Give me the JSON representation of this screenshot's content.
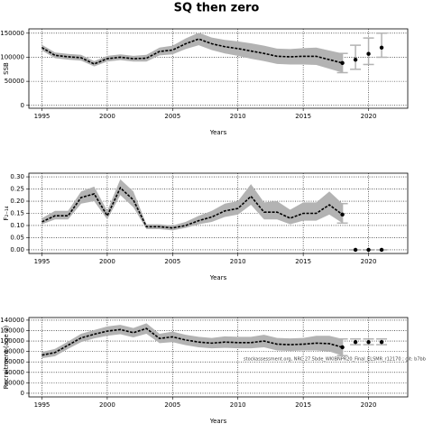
{
  "title": "SQ then zero",
  "chart_data": [
    {
      "type": "line",
      "xlabel": "Years",
      "ylabel": "SSB",
      "xlim": [
        1994,
        2023
      ],
      "xticks": [
        1995,
        2000,
        2005,
        2010,
        2015,
        2020
      ],
      "ylim": [
        -6000,
        159000
      ],
      "yticks": [
        0,
        50000,
        100000,
        150000
      ],
      "grid": true,
      "x": [
        1995,
        1996,
        1997,
        1998,
        1999,
        2000,
        2001,
        2002,
        2003,
        2004,
        2005,
        2006,
        2007,
        2008,
        2009,
        2010,
        2011,
        2012,
        2013,
        2014,
        2015,
        2016,
        2017,
        2018
      ],
      "values": [
        120000,
        104000,
        101000,
        99000,
        86000,
        97000,
        100000,
        97000,
        98000,
        112000,
        115000,
        128000,
        138000,
        128000,
        122000,
        118000,
        113000,
        108000,
        102000,
        101000,
        102000,
        102000,
        95000,
        88000
      ],
      "lower": [
        114000,
        98000,
        95000,
        93000,
        81000,
        91000,
        94000,
        91000,
        91000,
        104000,
        106000,
        117000,
        125000,
        115000,
        108000,
        103000,
        97000,
        92000,
        86000,
        85000,
        85000,
        84000,
        76000,
        68000
      ],
      "upper": [
        126000,
        110000,
        107000,
        105000,
        92000,
        103000,
        106000,
        103000,
        105000,
        120000,
        124000,
        139000,
        151000,
        141000,
        136000,
        133000,
        129000,
        124000,
        118000,
        117000,
        119000,
        120000,
        114000,
        108000
      ],
      "band_color": "#b3b3b3",
      "color": "#000000",
      "projection": {
        "x": [
          2018,
          2019,
          2020,
          2021
        ],
        "values": [
          88000,
          95000,
          107000,
          120000
        ],
        "lower": [
          68000,
          75000,
          85000,
          100000
        ],
        "upper": [
          108000,
          125000,
          140000,
          150000
        ],
        "color": "#000000",
        "bar_color": "#b3b3b3"
      }
    },
    {
      "type": "line",
      "xlabel": "Years",
      "ylabel": "F₂₋₁₄",
      "xlim": [
        1994,
        2023
      ],
      "xticks": [
        1995,
        2000,
        2005,
        2010,
        2015,
        2020
      ],
      "ylim": [
        -0.015,
        0.315
      ],
      "yticks": [
        {
          "value": 0,
          "label": "0.00"
        },
        {
          "value": 0.05,
          "label": "0.05"
        },
        {
          "value": 0.1,
          "label": "0.10"
        },
        {
          "value": 0.15,
          "label": "0.15"
        },
        {
          "value": 0.2,
          "label": "0.20"
        },
        {
          "value": 0.25,
          "label": "0.25"
        },
        {
          "value": 0.3,
          "label": "0.30"
        }
      ],
      "grid": true,
      "x": [
        1995,
        1996,
        1997,
        1998,
        1999,
        2000,
        2001,
        2002,
        2003,
        2004,
        2005,
        2006,
        2007,
        2008,
        2009,
        2010,
        2011,
        2012,
        2013,
        2014,
        2015,
        2016,
        2017,
        2018
      ],
      "values": [
        0.115,
        0.14,
        0.14,
        0.215,
        0.23,
        0.14,
        0.255,
        0.205,
        0.095,
        0.095,
        0.09,
        0.1,
        0.12,
        0.135,
        0.16,
        0.17,
        0.22,
        0.155,
        0.155,
        0.13,
        0.15,
        0.15,
        0.185,
        0.145
      ],
      "lower": [
        0.105,
        0.125,
        0.125,
        0.19,
        0.2,
        0.125,
        0.225,
        0.175,
        0.085,
        0.085,
        0.08,
        0.09,
        0.105,
        0.115,
        0.135,
        0.145,
        0.185,
        0.125,
        0.125,
        0.105,
        0.12,
        0.12,
        0.145,
        0.11
      ],
      "upper": [
        0.13,
        0.16,
        0.16,
        0.24,
        0.26,
        0.16,
        0.29,
        0.24,
        0.105,
        0.105,
        0.1,
        0.115,
        0.14,
        0.16,
        0.19,
        0.2,
        0.27,
        0.195,
        0.2,
        0.165,
        0.195,
        0.195,
        0.24,
        0.19
      ],
      "band_color": "#b3b3b3",
      "color": "#000000",
      "projection": {
        "x": [
          2018,
          2019,
          2020,
          2021
        ],
        "values": [
          0.145,
          0,
          0,
          0
        ],
        "lower": [
          0.11,
          0,
          0,
          0
        ],
        "upper": [
          0.19,
          0,
          0,
          0
        ],
        "color": "#000000",
        "bar_color": "#b3b3b3"
      }
    },
    {
      "type": "line",
      "xlabel": "Years",
      "ylabel": "Recruitment (age 2)",
      "annotation": "stockassessment.org, NRC 27.5bde_WKIBNPR20_Final_ELSMR_r12170 ; git: b7bb",
      "xlim": [
        1994,
        2023
      ],
      "xticks": [
        1995,
        2000,
        2005,
        2010,
        2015,
        2020
      ],
      "ylim": [
        -7000,
        145000
      ],
      "yticks": [
        0,
        20000,
        40000,
        60000,
        80000,
        100000,
        120000,
        140000
      ],
      "grid": true,
      "x": [
        1995,
        1996,
        1997,
        1998,
        1999,
        2000,
        2001,
        2002,
        2003,
        2004,
        2005,
        2006,
        2007,
        2008,
        2009,
        2010,
        2011,
        2012,
        2013,
        2014,
        2015,
        2016,
        2017,
        2018
      ],
      "values": [
        73000,
        78000,
        92000,
        106000,
        113000,
        119000,
        122000,
        116000,
        124000,
        105000,
        108000,
        102000,
        98000,
        96000,
        98000,
        97000,
        97000,
        100000,
        94000,
        93000,
        94000,
        96000,
        95000,
        88000
      ],
      "lower": [
        67000,
        71000,
        85000,
        98000,
        105000,
        110000,
        113000,
        107000,
        114000,
        96000,
        98000,
        92000,
        88000,
        86000,
        87000,
        86000,
        86000,
        88000,
        82000,
        81000,
        82000,
        82000,
        80000,
        72000
      ],
      "upper": [
        79000,
        85000,
        99000,
        114000,
        121000,
        128000,
        131000,
        125000,
        134000,
        114000,
        118000,
        112000,
        108000,
        106000,
        109000,
        108000,
        108000,
        112000,
        106000,
        105000,
        106000,
        110000,
        110000,
        104000
      ],
      "band_color": "#b3b3b3",
      "color": "#000000",
      "projection": {
        "x": [
          2018,
          2019,
          2020,
          2021
        ],
        "values": [
          88000,
          98000,
          98000,
          98000
        ],
        "lower": [
          72000,
          93000,
          93000,
          93000
        ],
        "upper": [
          104000,
          104000,
          104000,
          104000
        ],
        "color": "#000000",
        "bar_color": "#b3b3b3"
      }
    }
  ]
}
